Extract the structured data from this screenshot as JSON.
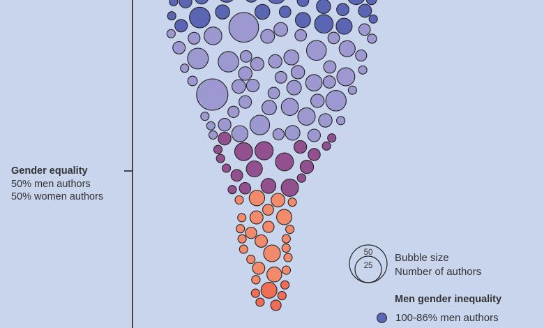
{
  "colors": {
    "background": "#c8d5ec",
    "men_inequality_deep": "#5a66b3",
    "men_inequality_light": "#9d98d0",
    "near_equality": "#93508f",
    "women_majority": "#f28b6b",
    "women_strong": "#ef6e55",
    "outline": "#222222"
  },
  "axis": {
    "tick_label_title": "Gender equality",
    "tick_label_line1": "50% men authors",
    "tick_label_line2": "50% women authors"
  },
  "legend": {
    "size_title": "Bubble size",
    "size_subtitle": "Number of authors",
    "size_ref_large": "50",
    "size_ref_small": "25",
    "color_title": "Men gender inequality",
    "color_items": [
      {
        "label": "100-86% men authors",
        "color": "#5a66b3"
      }
    ]
  },
  "chart_data": {
    "type": "scatter",
    "encoding": "beeswarm bubble chart; vertical position = share of men authors, bubble area = number of authors, color = gender balance category",
    "y_reference": "Gender equality (50% men authors / 50% women authors)",
    "size_legend": [
      50,
      25
    ],
    "groups": [
      {
        "color": "#5a66b3",
        "count": 40,
        "size_range": [
          8,
          14
        ]
      },
      {
        "color": "#9d98d0",
        "count": 150,
        "size_range": [
          6,
          22
        ]
      },
      {
        "color": "#93508f",
        "count": 30,
        "size_range": [
          7,
          14
        ]
      },
      {
        "color": "#f28b6b",
        "count": 20,
        "size_range": [
          7,
          13
        ]
      },
      {
        "color": "#ef6e55",
        "count": 3,
        "size_range": [
          7,
          11
        ]
      }
    ]
  }
}
